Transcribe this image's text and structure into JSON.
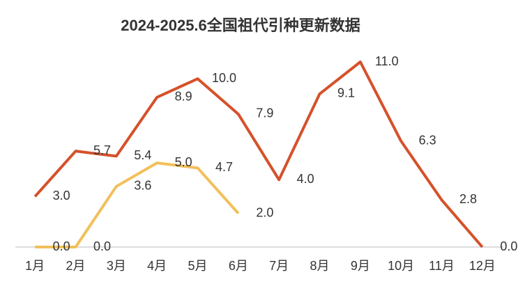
{
  "chart_data": {
    "type": "line",
    "title": "2024-2025.6全国祖代引种更新数据",
    "categories": [
      "1月",
      "2月",
      "3月",
      "4月",
      "5月",
      "6月",
      "7月",
      "8月",
      "9月",
      "10月",
      "11月",
      "12月"
    ],
    "series": [
      {
        "color": "#d5512a",
        "values": [
          3.0,
          5.7,
          5.4,
          8.9,
          10.0,
          7.9,
          4.0,
          9.1,
          11.0,
          6.3,
          2.8,
          0.0
        ],
        "value_labels": [
          "3.0",
          "5.7",
          "5.4",
          "8.9",
          "10.0",
          "7.9",
          "4.0",
          "9.1",
          "11.0",
          "6.3",
          "2.8",
          "0.0"
        ]
      },
      {
        "color": "#f2c05a",
        "values": [
          0.0,
          0.0,
          3.6,
          5.0,
          4.7,
          2.0,
          null,
          null,
          null,
          null,
          null,
          null
        ],
        "value_labels": [
          "0.0",
          "0.0",
          "3.6",
          "5.0",
          "4.7",
          "2.0",
          null,
          null,
          null,
          null,
          null,
          null
        ]
      }
    ],
    "ylim": [
      0,
      11
    ]
  }
}
